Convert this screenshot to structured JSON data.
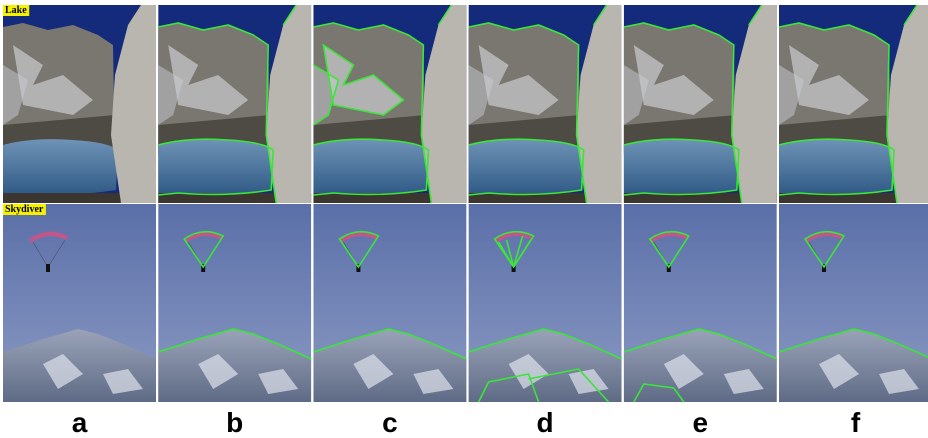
{
  "rows": [
    {
      "label": "Lake"
    },
    {
      "label": "Skydiver"
    }
  ],
  "columns": [
    "a",
    "b",
    "c",
    "d",
    "e",
    "f"
  ]
}
